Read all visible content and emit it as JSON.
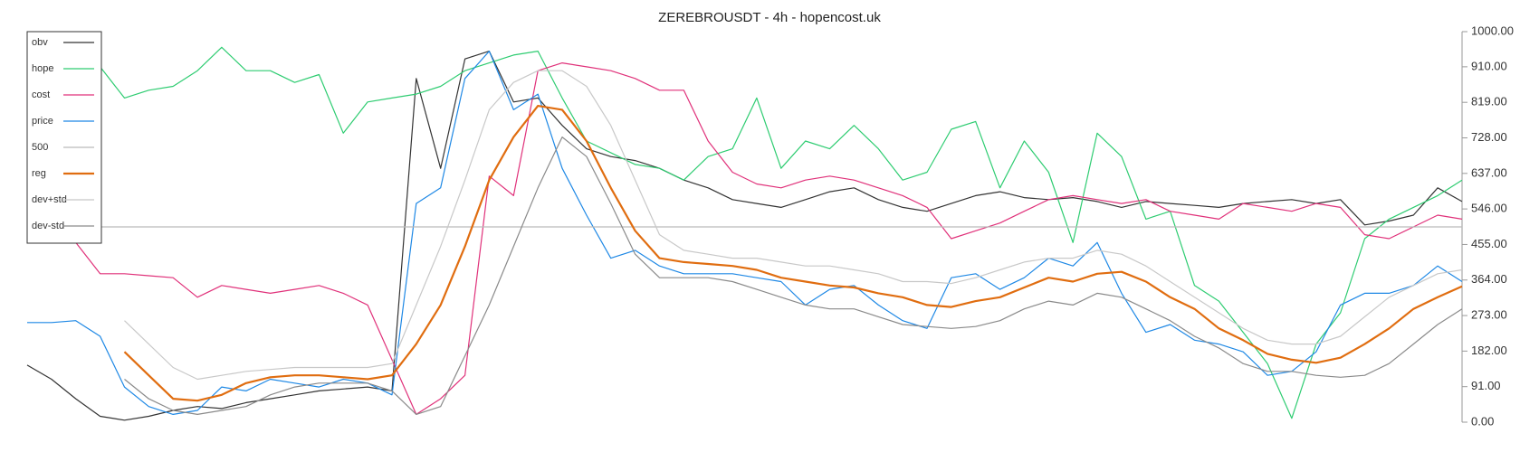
{
  "chart_data": {
    "type": "line",
    "title": "ZEREBROUSDT - 4h - hopencost.uk",
    "ylim": [
      0,
      1000
    ],
    "yticks": [
      {
        "value": 0,
        "label": "0.00"
      },
      {
        "value": 91,
        "label": "91.00"
      },
      {
        "value": 182,
        "label": "182.00"
      },
      {
        "value": 273,
        "label": "273.00"
      },
      {
        "value": 364,
        "label": "364.00"
      },
      {
        "value": 455,
        "label": "455.00"
      },
      {
        "value": 546,
        "label": "546.00"
      },
      {
        "value": 637,
        "label": "637.00"
      },
      {
        "value": 728,
        "label": "728.00"
      },
      {
        "value": 819,
        "label": "819.00"
      },
      {
        "value": 910,
        "label": "910.00"
      },
      {
        "value": 1000,
        "label": "1000.00"
      }
    ],
    "legend": "top-left",
    "series": [
      {
        "name": "obv",
        "color": "#333333",
        "width": 1.2,
        "values": [
          146,
          110,
          60,
          15,
          5,
          15,
          30,
          40,
          35,
          50,
          60,
          70,
          80,
          85,
          90,
          80,
          880,
          650,
          930,
          950,
          820,
          830,
          760,
          700,
          680,
          670,
          650,
          620,
          600,
          570,
          560,
          550,
          570,
          590,
          600,
          570,
          550,
          540,
          560,
          580,
          590,
          575,
          570,
          575,
          565,
          550,
          565,
          560,
          555,
          550,
          560,
          565,
          570,
          560,
          570,
          505,
          515,
          530,
          600,
          565
        ]
      },
      {
        "name": "hope",
        "color": "#2ecc71",
        "width": 1.2,
        "values": [
          null,
          null,
          null,
          910,
          830,
          850,
          860,
          900,
          960,
          900,
          900,
          870,
          890,
          740,
          820,
          830,
          840,
          860,
          900,
          920,
          940,
          950,
          830,
          720,
          690,
          660,
          650,
          620,
          680,
          700,
          830,
          650,
          720,
          700,
          760,
          700,
          620,
          640,
          750,
          770,
          600,
          720,
          640,
          460,
          740,
          680,
          520,
          540,
          350,
          310,
          230,
          150,
          10,
          200,
          280,
          470,
          520,
          550,
          580,
          620
        ]
      },
      {
        "name": "cost",
        "color": "#e0317a",
        "width": 1.2,
        "values": [
          null,
          470,
          460,
          380,
          380,
          375,
          370,
          320,
          350,
          340,
          330,
          340,
          350,
          330,
          300,
          160,
          20,
          60,
          120,
          630,
          580,
          900,
          920,
          910,
          900,
          880,
          850,
          850,
          720,
          640,
          610,
          600,
          620,
          630,
          620,
          600,
          580,
          550,
          470,
          490,
          510,
          540,
          570,
          580,
          570,
          560,
          570,
          540,
          530,
          520,
          560,
          550,
          540,
          560,
          550,
          480,
          470,
          500,
          530,
          520
        ]
      },
      {
        "name": "price",
        "color": "#1e88e5",
        "width": 1.2,
        "values": [
          255,
          255,
          260,
          220,
          90,
          40,
          20,
          30,
          90,
          80,
          110,
          100,
          90,
          110,
          100,
          70,
          560,
          600,
          880,
          950,
          800,
          840,
          650,
          530,
          420,
          440,
          400,
          380,
          380,
          380,
          370,
          360,
          300,
          340,
          350,
          300,
          260,
          240,
          370,
          380,
          340,
          370,
          420,
          400,
          460,
          330,
          230,
          250,
          210,
          200,
          180,
          120,
          130,
          180,
          300,
          330,
          330,
          350,
          400,
          360
        ]
      },
      {
        "name": "500",
        "color": "#bbbbbb",
        "width": 1.2,
        "values": [
          500,
          500,
          500,
          500,
          500,
          500,
          500,
          500,
          500,
          500,
          500,
          500,
          500,
          500,
          500,
          500,
          500,
          500,
          500,
          500,
          500,
          500,
          500,
          500,
          500,
          500,
          500,
          500,
          500,
          500,
          500,
          500,
          500,
          500,
          500,
          500,
          500,
          500,
          500,
          500,
          500,
          500,
          500,
          500,
          500,
          500,
          500,
          500,
          500,
          500,
          500,
          500,
          500,
          500,
          500,
          500,
          500,
          500,
          500,
          500
        ]
      },
      {
        "name": "reg",
        "color": "#e06d10",
        "width": 2.2,
        "values": [
          null,
          null,
          null,
          null,
          180,
          120,
          60,
          55,
          70,
          100,
          115,
          120,
          120,
          115,
          110,
          120,
          200,
          300,
          450,
          620,
          730,
          810,
          800,
          720,
          600,
          490,
          420,
          410,
          405,
          400,
          390,
          370,
          360,
          350,
          345,
          330,
          320,
          300,
          295,
          310,
          320,
          345,
          370,
          360,
          380,
          385,
          360,
          320,
          290,
          240,
          210,
          175,
          160,
          152,
          165,
          200,
          240,
          290,
          320,
          348
        ]
      },
      {
        "name": "dev+std",
        "color": "#c8c8c8",
        "width": 1.2,
        "values": [
          null,
          null,
          null,
          null,
          260,
          200,
          140,
          110,
          120,
          130,
          135,
          140,
          140,
          140,
          140,
          150,
          300,
          450,
          620,
          800,
          870,
          900,
          900,
          860,
          760,
          620,
          480,
          440,
          430,
          420,
          420,
          410,
          400,
          400,
          390,
          380,
          360,
          360,
          355,
          370,
          390,
          410,
          420,
          420,
          440,
          430,
          400,
          360,
          320,
          280,
          240,
          210,
          200,
          200,
          220,
          270,
          320,
          350,
          380,
          390
        ]
      },
      {
        "name": "dev-std",
        "color": "#8a8a8a",
        "width": 1.2,
        "values": [
          null,
          null,
          null,
          null,
          110,
          60,
          30,
          20,
          30,
          40,
          70,
          90,
          100,
          100,
          100,
          80,
          20,
          40,
          170,
          300,
          450,
          600,
          730,
          680,
          560,
          430,
          370,
          370,
          370,
          360,
          340,
          320,
          300,
          290,
          290,
          270,
          250,
          245,
          240,
          245,
          260,
          290,
          310,
          300,
          330,
          320,
          290,
          260,
          220,
          190,
          150,
          130,
          130,
          120,
          115,
          120,
          150,
          200,
          250,
          290
        ]
      }
    ]
  }
}
